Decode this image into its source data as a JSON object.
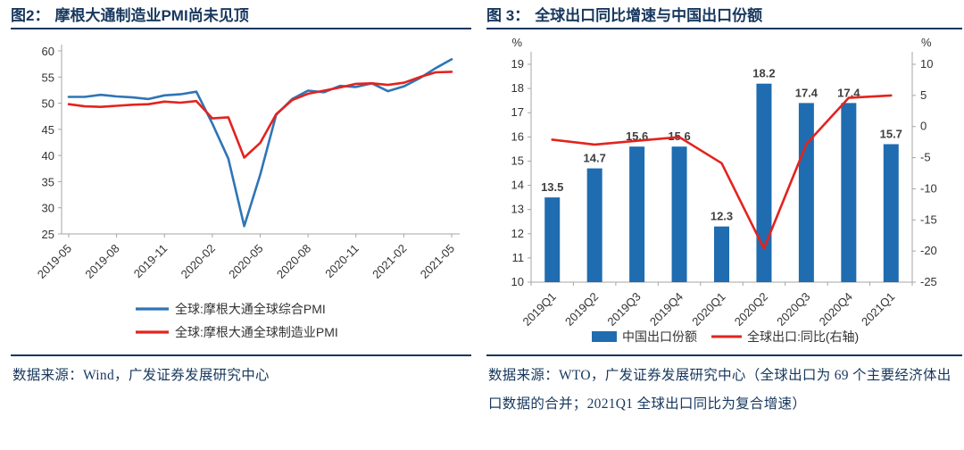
{
  "theme": {
    "navy": "#17375e",
    "axis_gray": "#a6a6a6",
    "blue_line": "#2e75b6",
    "bar_blue": "#1f6cb0",
    "red_line": "#e3231e"
  },
  "figures": [
    {
      "label": "图2：",
      "title": "摩根大通制造业PMI尚未见顶",
      "source": "数据来源：Wind，广发证券发展研究中心"
    },
    {
      "label": "图 3：",
      "title": "全球出口同比增速与中国出口份额",
      "source": "数据来源：WTO，广发证券发展研究中心（全球出口为 69 个主要经济体出口数据的合并；2021Q1 全球出口同比为复合增速）"
    }
  ],
  "chart_data": [
    {
      "type": "line",
      "title": "摩根大通制造业PMI尚未见顶",
      "x": [
        "2019-05",
        "2019-06",
        "2019-07",
        "2019-08",
        "2019-09",
        "2019-10",
        "2019-11",
        "2019-12",
        "2020-01",
        "2020-02",
        "2020-03",
        "2020-04",
        "2020-05",
        "2020-06",
        "2020-07",
        "2020-08",
        "2020-09",
        "2020-10",
        "2020-11",
        "2020-12",
        "2021-01",
        "2021-02",
        "2021-03",
        "2021-04",
        "2021-05"
      ],
      "x_tick_labels": [
        "2019-05",
        "2019-08",
        "2019-11",
        "2020-02",
        "2020-05",
        "2020-08",
        "2020-11",
        "2021-02",
        "2021-05"
      ],
      "ylim": [
        25,
        60
      ],
      "y_ticks": [
        25,
        30,
        35,
        40,
        45,
        50,
        55,
        60
      ],
      "grid": false,
      "legend_position": "bottom",
      "series": [
        {
          "name": "全球:摩根大通全球综合PMI",
          "color": "#2e75b6",
          "values": [
            51.2,
            51.2,
            51.6,
            51.3,
            51.1,
            50.8,
            51.5,
            51.7,
            52.2,
            46.1,
            39.4,
            26.5,
            36.3,
            47.8,
            50.8,
            52.4,
            52.1,
            53.3,
            53.1,
            53.8,
            52.3,
            53.2,
            54.8,
            56.7,
            58.4
          ]
        },
        {
          "name": "全球:摩根大通全球制造业PMI",
          "color": "#e3231e",
          "values": [
            49.8,
            49.4,
            49.3,
            49.5,
            49.7,
            49.8,
            50.3,
            50.1,
            50.4,
            47.1,
            47.3,
            39.6,
            42.4,
            47.9,
            50.6,
            51.8,
            52.4,
            53.0,
            53.7,
            53.8,
            53.5,
            53.9,
            55.0,
            55.9,
            56.0
          ]
        }
      ]
    },
    {
      "type": "bar",
      "title": "全球出口同比增速与中国出口份额",
      "categories": [
        "2019Q1",
        "2019Q2",
        "2019Q3",
        "2019Q4",
        "2020Q1",
        "2020Q2",
        "2020Q3",
        "2020Q4",
        "2021Q1"
      ],
      "axis_left": {
        "label": "%",
        "lim": [
          10,
          19
        ],
        "ticks": [
          10,
          11,
          12,
          13,
          14,
          15,
          16,
          17,
          18,
          19
        ]
      },
      "axis_right": {
        "label": "%",
        "lim": [
          -25,
          10
        ],
        "ticks": [
          -25,
          -20,
          -15,
          -10,
          -5,
          0,
          5,
          10
        ]
      },
      "grid": false,
      "legend_position": "bottom",
      "series": [
        {
          "name": "中国出口份额",
          "type": "bar",
          "axis": "left",
          "color": "#1f6cb0",
          "data_labels": true,
          "values": [
            13.5,
            14.7,
            15.6,
            15.6,
            12.3,
            18.2,
            17.4,
            17.4,
            15.7
          ]
        },
        {
          "name": "全球出口:同比(右轴)",
          "type": "line",
          "axis": "right",
          "color": "#e3231e",
          "data_labels": false,
          "values": [
            -2.1,
            -2.9,
            -2.3,
            -1.7,
            -5.9,
            -19.6,
            -2.8,
            4.6,
            5.0
          ]
        }
      ]
    }
  ]
}
